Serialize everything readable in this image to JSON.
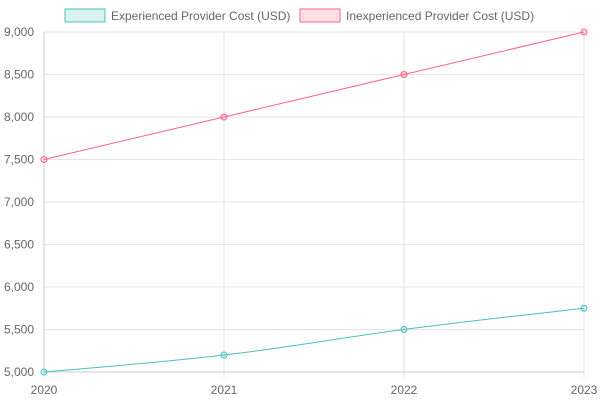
{
  "chart_data": {
    "type": "line",
    "title": "",
    "xlabel": "",
    "ylabel": "",
    "categories": [
      "2020",
      "2021",
      "2022",
      "2023"
    ],
    "ylim": [
      5000,
      9000
    ],
    "y_ticks": [
      5000,
      5500,
      6000,
      6500,
      7000,
      7500,
      8000,
      8500,
      9000
    ],
    "y_tick_labels": [
      "5,000",
      "5,500",
      "6,000",
      "6,500",
      "7,000",
      "7,500",
      "8,000",
      "8,500",
      "9,000"
    ],
    "grid": true,
    "legend_position": "top",
    "series": [
      {
        "name": "Experienced Provider Cost (USD)",
        "values": [
          5000,
          5200,
          5500,
          5750
        ],
        "color": "#4bc0c0",
        "fill": "rgba(75,192,192,0.2)"
      },
      {
        "name": "Inexperienced Provider Cost (USD)",
        "values": [
          7500,
          8000,
          8500,
          9000
        ],
        "color": "#ff6384",
        "fill": "rgba(255,99,132,0.2)"
      }
    ]
  }
}
